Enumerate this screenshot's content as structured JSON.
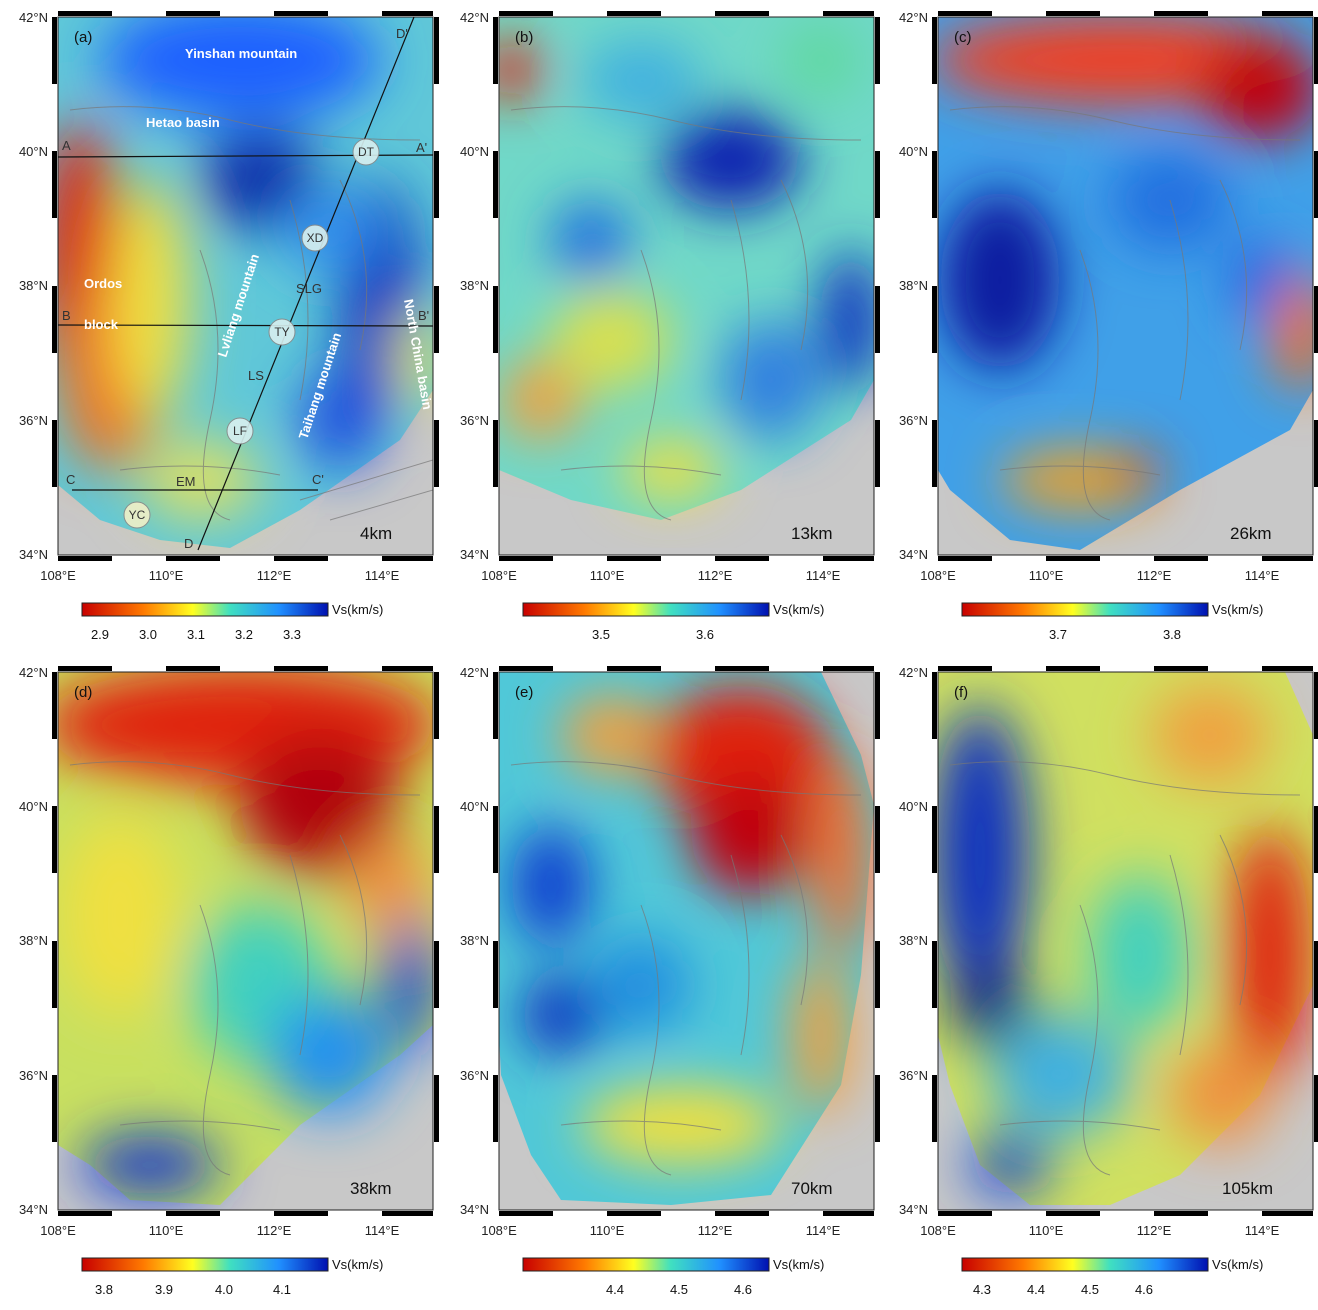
{
  "map": {
    "lon_range": [
      108,
      115
    ],
    "lat_range": [
      34,
      42
    ],
    "lon_ticks": [
      "108°E",
      "110°E",
      "112°E",
      "114°E"
    ],
    "lat_ticks": [
      "34°N",
      "36°N",
      "38°N",
      "40°N",
      "42°N"
    ]
  },
  "colorbar_unit": "Vs(km/s)",
  "panels": [
    {
      "label": "(a)",
      "depth": "4km",
      "ticks": [
        "2.9",
        "3.0",
        "3.1",
        "3.2",
        "3.3"
      ]
    },
    {
      "label": "(b)",
      "depth": "13km",
      "ticks": [
        "3.5",
        "3.6"
      ]
    },
    {
      "label": "(c)",
      "depth": "26km",
      "ticks": [
        "3.7",
        "3.8"
      ]
    },
    {
      "label": "(d)",
      "depth": "38km",
      "ticks": [
        "3.8",
        "3.9",
        "4.0",
        "4.1"
      ]
    },
    {
      "label": "(e)",
      "depth": "70km",
      "ticks": [
        "4.4",
        "4.5",
        "4.6"
      ]
    },
    {
      "label": "(f)",
      "depth": "105km",
      "ticks": [
        "4.3",
        "4.4",
        "4.5",
        "4.6"
      ]
    }
  ],
  "annotations": {
    "yinshan": "Yinshan mountain",
    "hetao": "Hetao basin",
    "ordos1": "Ordos",
    "ordos2": "block",
    "lvliang": "Lvliang mountain",
    "taihang": "Taihang mountain",
    "north_china": "North China basin",
    "slg": "SLG",
    "ls": "LS",
    "em": "EM"
  },
  "profiles": {
    "a": "A",
    "a2": "A'",
    "b": "B",
    "b2": "B'",
    "c": "C",
    "c2": "C'",
    "d": "D",
    "d2": "D'"
  },
  "stations": [
    "DT",
    "XD",
    "TY",
    "LF",
    "YC"
  ]
}
